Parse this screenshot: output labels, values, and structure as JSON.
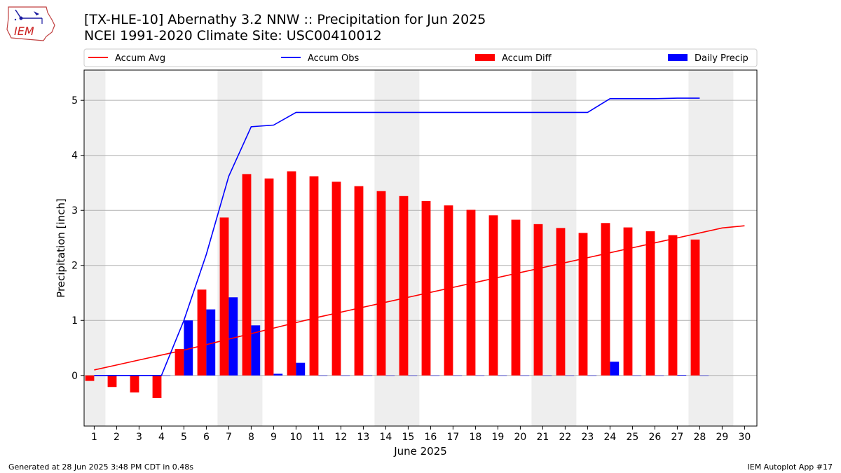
{
  "header": {
    "title": "[TX-HLE-10] Abernathy 3.2 NNW :: Precipitation for Jun 2025",
    "subtitle": "NCEI 1991-2020 Climate Site: USC00410012",
    "logo_text": "IEM"
  },
  "footer": {
    "generated": "Generated at 28 Jun 2025 3:48 PM CDT in 0.48s",
    "app": "IEM Autoplot App #17"
  },
  "colors": {
    "accum_avg": "#ff0000",
    "accum_obs": "#0000ff",
    "accum_diff": "#ff0000",
    "daily_precip": "#0000ff",
    "weekend_shade": "#eeeeee",
    "grid": "#b0b0b0"
  },
  "chart_data": {
    "type": "bar",
    "xlabel": "June 2025",
    "ylabel": "Precipitation [inch]",
    "ylim": [
      -0.92,
      5.55
    ],
    "yticks": [
      0,
      1,
      2,
      3,
      4,
      5
    ],
    "days": [
      1,
      2,
      3,
      4,
      5,
      6,
      7,
      8,
      9,
      10,
      11,
      12,
      13,
      14,
      15,
      16,
      17,
      18,
      19,
      20,
      21,
      22,
      23,
      24,
      25,
      26,
      27,
      28,
      29,
      30
    ],
    "weekend_days": [
      1,
      7,
      8,
      14,
      15,
      21,
      22,
      28,
      29
    ],
    "legend": {
      "placement": "top",
      "entries": [
        "Accum Avg",
        "Accum Obs",
        "Accum Diff",
        "Daily Precip"
      ]
    },
    "series": [
      {
        "name": "Accum Avg",
        "kind": "line",
        "values": [
          0.1,
          0.19,
          0.28,
          0.37,
          0.46,
          0.56,
          0.66,
          0.76,
          0.86,
          0.96,
          1.06,
          1.15,
          1.24,
          1.33,
          1.42,
          1.51,
          1.6,
          1.69,
          1.78,
          1.87,
          1.96,
          2.05,
          2.14,
          2.23,
          2.32,
          2.41,
          2.5,
          2.59,
          2.68,
          2.72
        ]
      },
      {
        "name": "Accum Obs",
        "kind": "line",
        "values": [
          0,
          0,
          0,
          0,
          1.0,
          2.2,
          3.62,
          4.52,
          4.55,
          4.78,
          4.78,
          4.78,
          4.78,
          4.78,
          4.78,
          4.78,
          4.78,
          4.78,
          4.78,
          4.78,
          4.78,
          4.78,
          4.78,
          5.03,
          5.03,
          5.03,
          5.04,
          5.04
        ]
      },
      {
        "name": "Accum Diff",
        "kind": "bar",
        "values": [
          -0.1,
          -0.21,
          -0.31,
          -0.41,
          0.48,
          1.56,
          2.87,
          3.66,
          3.58,
          3.71,
          3.62,
          3.52,
          3.44,
          3.35,
          3.26,
          3.17,
          3.09,
          3.01,
          2.91,
          2.83,
          2.75,
          2.68,
          2.59,
          2.77,
          2.69,
          2.62,
          2.55,
          2.47
        ]
      },
      {
        "name": "Daily Precip",
        "kind": "bar",
        "values": [
          0,
          0,
          0,
          0,
          1.0,
          1.2,
          1.42,
          0.91,
          0.03,
          0.23,
          0,
          0,
          0,
          0,
          0,
          0,
          0,
          0,
          0,
          0,
          0,
          0,
          0,
          0.25,
          0,
          0,
          0.01,
          0
        ]
      }
    ]
  }
}
